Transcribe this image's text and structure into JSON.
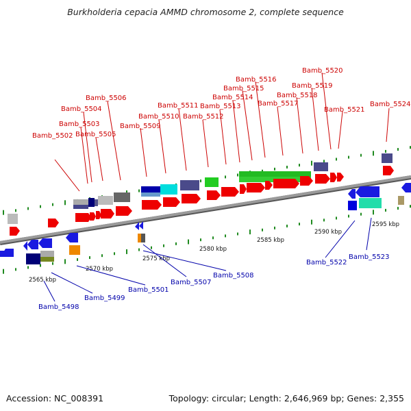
{
  "title": "Burkholderia cepacia AMMD chromosome 2, complete sequence",
  "footer": {
    "accession": "Accession: NC_008391",
    "topology": "Topology: circular; Length: 2,646,969 bp; Genes: 2,355"
  },
  "colors": {
    "backbone": "#8a8a8a",
    "top_label": "#cc0000",
    "bottom_label": "#0000aa",
    "tick": "#1f8a1f"
  },
  "scale_labels": [
    "2565 kbp",
    "2570 kbp",
    "2575 kbp",
    "2580 kbp",
    "2585 kbp",
    "2590 kbp",
    "2595 kbp"
  ],
  "top_labels": [
    "Bamb_5502",
    "Bamb_5503",
    "Bamb_5504",
    "Bamb_5505",
    "Bamb_5506",
    "Bamb_5509",
    "Bamb_5510",
    "Bamb_5511",
    "Bamb_5512",
    "Bamb_5513",
    "Bamb_5514",
    "Bamb_5515",
    "Bamb_5516",
    "Bamb_5517",
    "Bamb_5518",
    "Bamb_5519",
    "Bamb_5520",
    "Bamb_5521",
    "Bamb_5524"
  ],
  "bottom_labels": [
    "Bamb_5498",
    "Bamb_5499",
    "Bamb_5501",
    "Bamb_5507",
    "Bamb_5508",
    "Bamb_5522",
    "Bamb_5523"
  ]
}
